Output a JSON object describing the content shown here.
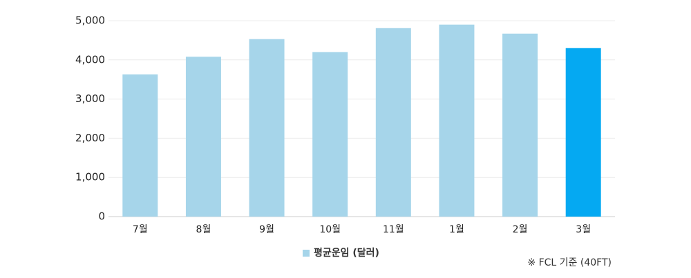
{
  "chart_data": {
    "type": "bar",
    "categories": [
      "7월",
      "8월",
      "9월",
      "10월",
      "11월",
      "1월",
      "2월",
      "3월"
    ],
    "series": [
      {
        "name": "평균운임 (달러)",
        "color": "#a6d5ea",
        "values": [
          3630,
          4080,
          4530,
          4200,
          4810,
          4900,
          4670,
          4300
        ],
        "colors": [
          "#a6d5ea",
          "#a6d5ea",
          "#a6d5ea",
          "#a6d5ea",
          "#a6d5ea",
          "#a6d5ea",
          "#a6d5ea",
          "#05a9f2"
        ]
      }
    ],
    "ylim": [
      0,
      5000
    ],
    "yticks": [
      0,
      {
        "value": 1000,
        "label": "1,000"
      },
      {
        "value": 2000,
        "label": "2,000"
      },
      {
        "value": 3000,
        "label": "3,000"
      },
      {
        "value": 4000,
        "label": "4,000"
      },
      {
        "value": 5000,
        "label": "5,000"
      }
    ],
    "grid": true,
    "annotation": "※ FCL 기준 (40FT)"
  }
}
